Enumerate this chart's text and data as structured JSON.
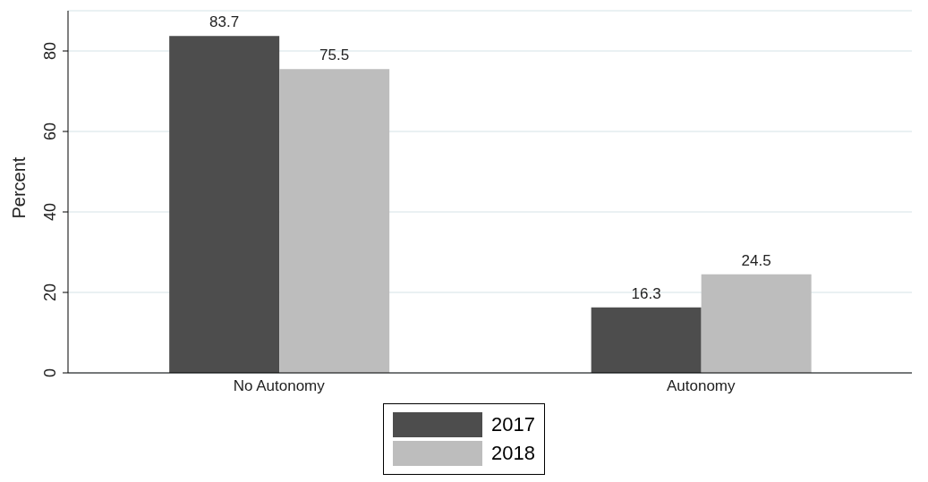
{
  "chart_data": {
    "type": "bar",
    "ylabel": "Percent",
    "categories": [
      "No Autonomy",
      "Autonomy"
    ],
    "series": [
      {
        "name": "2017",
        "color": "#4d4d4d",
        "values": [
          83.7,
          16.3
        ]
      },
      {
        "name": "2018",
        "color": "#bdbdbd",
        "values": [
          75.5,
          24.5
        ]
      }
    ],
    "ylim": [
      0,
      90
    ],
    "yticks": [
      0,
      20,
      40,
      60,
      80
    ],
    "grid": "y",
    "legend": "bottom",
    "data_labels": true
  }
}
